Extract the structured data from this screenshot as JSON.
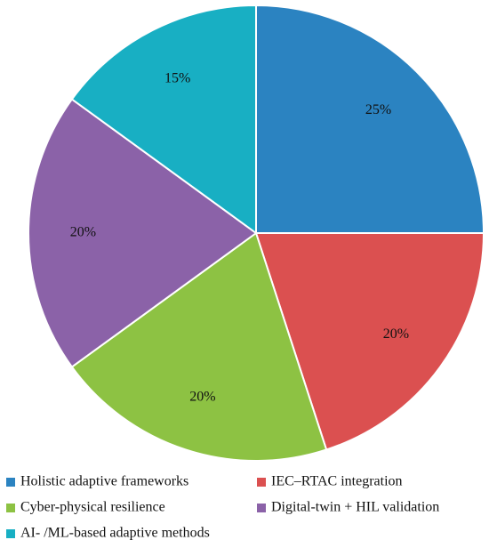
{
  "chart_data": {
    "type": "pie",
    "values": [
      25,
      20,
      20,
      20,
      15
    ],
    "labels": [
      "25%",
      "20%",
      "20%",
      "20%",
      "15%"
    ],
    "categories": [
      "Holistic adaptive frameworks",
      "IEC–RTAC integration",
      "Cyber-physical resilience",
      "Digital-twin + HIL validation",
      "AI- /ML-based adaptive methods"
    ],
    "colors": [
      "#2B83C1",
      "#DB5050",
      "#8DC243",
      "#8B62A8",
      "#18AFC3"
    ],
    "start": "top",
    "direction": "clockwise",
    "legend_position": "bottom"
  }
}
